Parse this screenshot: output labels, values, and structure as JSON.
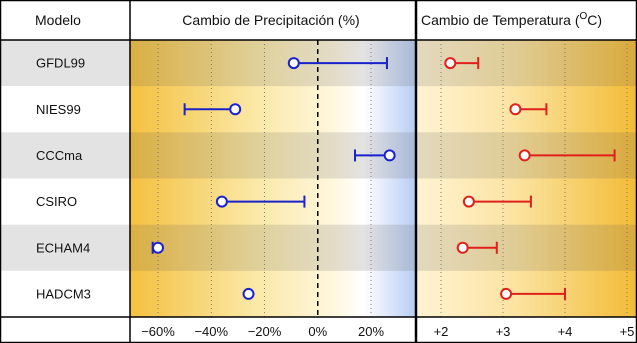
{
  "chart_data": [
    {
      "type": "range",
      "header": "Cambio de Precipitación (%)",
      "xlim": [
        -75,
        35
      ],
      "ticks": [
        -60,
        -40,
        -20,
        0,
        20
      ],
      "tick_labels": [
        "−60%",
        "−40%",
        "−20%",
        "0%",
        "20%"
      ],
      "marker_color": "#1a22cc",
      "ranges": [
        {
          "model": "GFDL99",
          "start": -9,
          "end": 26
        },
        {
          "model": "NIES99",
          "start": -31,
          "end": -50
        },
        {
          "model": "CCCma",
          "start": 27,
          "end": 14
        },
        {
          "model": "CSIRO",
          "start": -36,
          "end": -5
        },
        {
          "model": "ECHAM4",
          "start": -60,
          "end": -62
        },
        {
          "model": "HADCM3",
          "start": -26,
          "end": -26
        }
      ]
    },
    {
      "type": "range",
      "header": "Cambio de Temperatura (",
      "header_sup": "O",
      "header_suffix": "C)",
      "xlim": [
        1.6,
        5.1
      ],
      "ticks": [
        2,
        3,
        4,
        5
      ],
      "tick_labels": [
        "+2",
        "+3",
        "+4",
        "+5"
      ],
      "marker_color": "#e0201a",
      "ranges": [
        {
          "model": "GFDL99",
          "start": 2.15,
          "end": 2.6
        },
        {
          "model": "NIES99",
          "start": 3.2,
          "end": 3.7
        },
        {
          "model": "CCCma",
          "start": 3.35,
          "end": 4.8
        },
        {
          "model": "CSIRO",
          "start": 2.45,
          "end": 3.45
        },
        {
          "model": "ECHAM4",
          "start": 2.35,
          "end": 2.9
        },
        {
          "model": "HADCM3",
          "start": 3.05,
          "end": 4.0
        }
      ]
    }
  ],
  "table": {
    "model_header": "Modelo",
    "models": [
      "GFDL99",
      "NIES99",
      "CCCma",
      "CSIRO",
      "ECHAM4",
      "HADCM3"
    ]
  }
}
